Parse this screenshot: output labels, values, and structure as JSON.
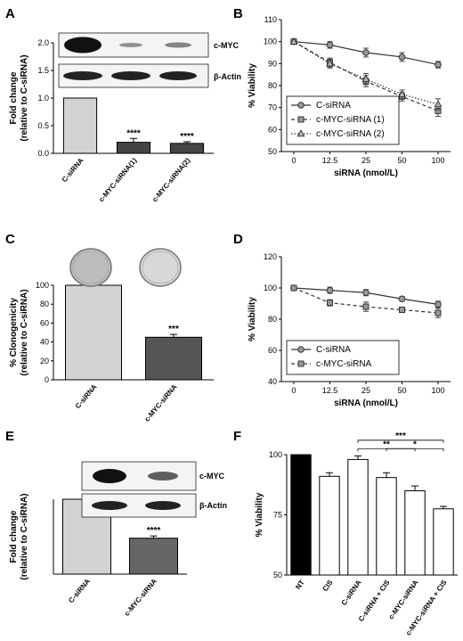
{
  "chart_data": [
    {
      "panel": "A",
      "type": "bar",
      "categories": [
        "C-siRNA",
        "c-MYC-siRNA(1)",
        "c-MYC-siRNA(2)"
      ],
      "values": [
        1.0,
        0.2,
        0.18
      ],
      "errors": [
        0,
        0.07,
        0.03
      ],
      "significance": [
        "",
        "****",
        "****"
      ],
      "colors": [
        "#d3d3d3",
        "#444444",
        "#444444"
      ],
      "ylabel_line1": "Fold change",
      "ylabel_line2": "(relative to C-siRNA)",
      "ylim": [
        0,
        2.0
      ],
      "yticks": [
        "0.0",
        "0.5",
        "1.0",
        "1.5",
        "2.0"
      ],
      "blot_labels": [
        "c-MYC",
        "β-Actin"
      ]
    },
    {
      "panel": "B",
      "type": "line",
      "x": [
        "0",
        "12.5",
        "25",
        "50",
        "100"
      ],
      "series": [
        {
          "name": "C-siRNA",
          "values": [
            100,
            98.5,
            95,
            93,
            89.5
          ],
          "errors": [
            0,
            1.5,
            2,
            2,
            1.5
          ]
        },
        {
          "name": "c-MYC-siRNA (1)",
          "values": [
            100,
            90.5,
            82,
            75,
            68.5
          ],
          "errors": [
            0,
            2,
            2.5,
            2,
            2.5
          ]
        },
        {
          "name": "c-MYC-siRNA (2)",
          "values": [
            100,
            90,
            83,
            76,
            71.5
          ],
          "errors": [
            0,
            2,
            2.5,
            2,
            2.5
          ]
        }
      ],
      "xlabel": "siRNA (nmol/L)",
      "ylabel": "% Viability",
      "ylim": [
        50,
        110
      ],
      "yticks": [
        "50",
        "60",
        "70",
        "80",
        "90",
        "100",
        "110"
      ],
      "legend": "bottom-left"
    },
    {
      "panel": "C",
      "type": "bar",
      "categories": [
        "C-siRNA",
        "c-MYC-siRNA"
      ],
      "values": [
        100,
        45
      ],
      "errors": [
        0,
        3
      ],
      "significance": [
        "",
        "***"
      ],
      "colors": [
        "#d3d3d3",
        "#555555"
      ],
      "ylabel_line1": "% Clonogenicity",
      "ylabel_line2": "(relative to C-siRNA)",
      "ylim": [
        0,
        100
      ],
      "yticks": [
        "0",
        "20",
        "40",
        "60",
        "80",
        "100"
      ]
    },
    {
      "panel": "D",
      "type": "line",
      "x": [
        "0",
        "12.5",
        "25",
        "50",
        "100"
      ],
      "series": [
        {
          "name": "C-siRNA",
          "values": [
            100,
            98.5,
            97,
            93,
            89.5
          ],
          "errors": [
            0,
            2,
            2,
            1.5,
            2
          ]
        },
        {
          "name": "c-MYC-siRNA",
          "values": [
            100,
            90.5,
            88,
            86,
            84
          ],
          "errors": [
            0,
            2,
            3,
            1.5,
            3
          ]
        }
      ],
      "xlabel": "siRNA (nmol/L)",
      "ylabel": "% Viability",
      "ylim": [
        40,
        120
      ],
      "yticks": [
        "40",
        "60",
        "80",
        "100",
        "120"
      ],
      "legend": "bottom-left"
    },
    {
      "panel": "E",
      "type": "bar",
      "categories": [
        "C-siRNA",
        "c-MYC-siRNA"
      ],
      "values": [
        1.0,
        0.48
      ],
      "errors": [
        0,
        0.03
      ],
      "significance": [
        "",
        "****"
      ],
      "colors": [
        "#d3d3d3",
        "#666666"
      ],
      "ylabel_line1": "Fold change",
      "ylabel_line2": "(relative to C-siRNA)",
      "ylim": [
        0,
        1.0
      ],
      "yticks": [],
      "blot_labels": [
        "c-MYC",
        "β-Actin"
      ]
    },
    {
      "panel": "F",
      "type": "bar",
      "categories": [
        "NT",
        "CIS",
        "C-siRNA",
        "C-siRNA + CIS",
        "c-MYC-siRNA",
        "c-MYC-siRNA + CIS"
      ],
      "values": [
        100,
        91,
        98,
        90.5,
        85,
        77.5
      ],
      "errors": [
        0,
        1.5,
        1.5,
        2,
        2,
        1
      ],
      "colors": [
        "#000000",
        "#ffffff",
        "#ffffff",
        "#ffffff",
        "#ffffff",
        "#ffffff"
      ],
      "ylabel": "% Viability",
      "ylim": [
        50,
        100
      ],
      "yticks": [
        "50",
        "75",
        "100"
      ],
      "brackets": [
        {
          "from": 2,
          "to": 4,
          "label": "**",
          "y": 102.5
        },
        {
          "from": 3,
          "to": 5,
          "label": "*",
          "y": 102.5
        },
        {
          "from": 2,
          "to": 5,
          "label": "***",
          "y": 106
        }
      ]
    }
  ]
}
